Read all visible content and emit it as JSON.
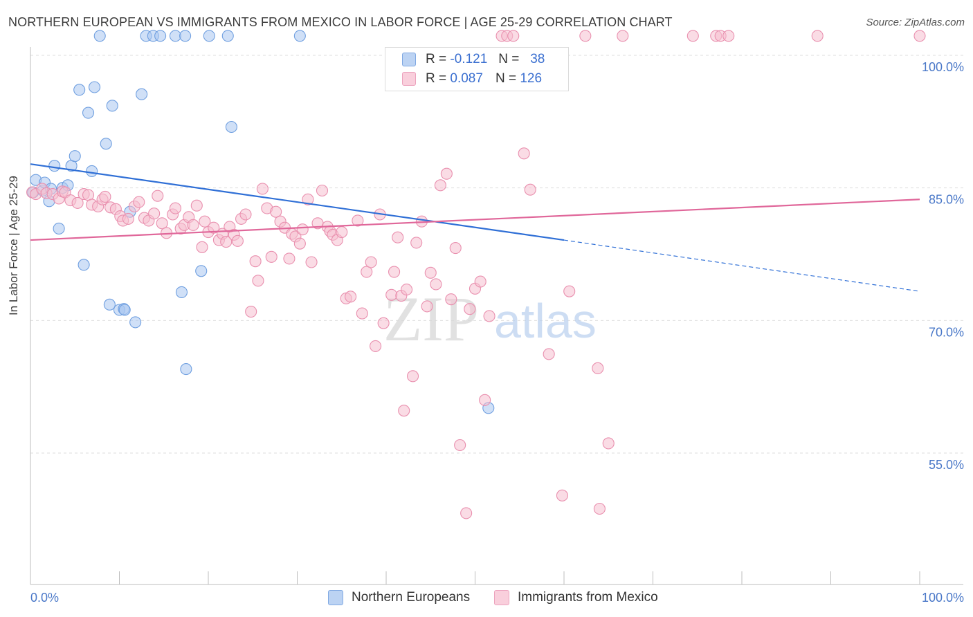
{
  "title": "NORTHERN EUROPEAN VS IMMIGRANTS FROM MEXICO IN LABOR FORCE | AGE 25-29 CORRELATION CHART",
  "source": "Source: ZipAtlas.com",
  "watermark": {
    "zip": "ZIP",
    "atlas": "atlas"
  },
  "legend": {
    "r_label": "R =",
    "n_label": "N =",
    "series1": {
      "r": "-0.121",
      "n": "38"
    },
    "series2": {
      "r": "0.087",
      "n": "126"
    }
  },
  "colors": {
    "blue_fill": "#a9c6f0",
    "blue_stroke": "#6f9fe0",
    "blue_line": "#2f6fd6",
    "pink_fill": "#f6bfd0",
    "pink_stroke": "#e98fae",
    "pink_line": "#e0679a",
    "tick_label": "#4a78c8"
  },
  "chart_data": {
    "type": "scatter",
    "xlabel": "",
    "ylabel": "In Labor Force | Age 25-29",
    "xlim": [
      0,
      100
    ],
    "ylim": [
      40,
      104
    ],
    "x_tick_labels": {
      "left": "0.0%",
      "right": "100.0%"
    },
    "y_ticks": [
      {
        "value": 100,
        "label": "100.0%"
      },
      {
        "value": 85,
        "label": "85.0%"
      },
      {
        "value": 70,
        "label": "70.0%"
      },
      {
        "value": 55,
        "label": "55.0%"
      }
    ],
    "grid": "horizontal dashed",
    "series": [
      {
        "name": "Northern Europeans",
        "trend": {
          "x": [
            0,
            60,
            100
          ],
          "y": [
            87.7,
            79.1,
            73.3
          ],
          "solid_until_x": 60
        },
        "points": [
          [
            0.3,
            84.5
          ],
          [
            0.6,
            85.9
          ],
          [
            1.4,
            84.7
          ],
          [
            1.6,
            85.6
          ],
          [
            2.1,
            83.5
          ],
          [
            2.3,
            84.9
          ],
          [
            2.7,
            87.5
          ],
          [
            3.2,
            80.4
          ],
          [
            3.6,
            85.0
          ],
          [
            4.2,
            85.3
          ],
          [
            4.6,
            87.5
          ],
          [
            5.0,
            88.6
          ],
          [
            5.5,
            96.1
          ],
          [
            6.0,
            76.3
          ],
          [
            6.5,
            93.5
          ],
          [
            6.9,
            86.9
          ],
          [
            7.2,
            96.4
          ],
          [
            7.8,
            102.2
          ],
          [
            8.5,
            90.0
          ],
          [
            8.9,
            71.8
          ],
          [
            9.2,
            94.3
          ],
          [
            10.0,
            71.2
          ],
          [
            10.5,
            71.3
          ],
          [
            10.6,
            71.2
          ],
          [
            11.2,
            82.3
          ],
          [
            11.8,
            69.8
          ],
          [
            12.5,
            95.6
          ],
          [
            13.0,
            102.2
          ],
          [
            13.8,
            102.2
          ],
          [
            14.6,
            102.2
          ],
          [
            16.3,
            102.2
          ],
          [
            17.0,
            73.2
          ],
          [
            17.4,
            102.2
          ],
          [
            17.5,
            64.5
          ],
          [
            19.2,
            75.6
          ],
          [
            20.1,
            102.2
          ],
          [
            22.2,
            102.2
          ],
          [
            22.6,
            91.9
          ],
          [
            30.3,
            102.2
          ],
          [
            51.5,
            60.1
          ]
        ]
      },
      {
        "name": "Immigrants from Mexico",
        "trend": {
          "x": [
            0,
            100
          ],
          "y": [
            79.1,
            83.7
          ]
        },
        "points": [
          [
            0.2,
            84.5
          ],
          [
            0.6,
            84.3
          ],
          [
            1.3,
            84.9
          ],
          [
            1.8,
            84.4
          ],
          [
            2.5,
            84.3
          ],
          [
            3.2,
            83.8
          ],
          [
            3.6,
            84.6
          ],
          [
            3.9,
            84.5
          ],
          [
            4.5,
            83.6
          ],
          [
            5.3,
            83.3
          ],
          [
            6.0,
            84.3
          ],
          [
            6.5,
            84.2
          ],
          [
            6.9,
            83.1
          ],
          [
            7.6,
            82.9
          ],
          [
            8.1,
            83.7
          ],
          [
            8.4,
            84.0
          ],
          [
            9.0,
            82.8
          ],
          [
            9.6,
            82.6
          ],
          [
            10.1,
            81.8
          ],
          [
            10.4,
            81.3
          ],
          [
            11.0,
            81.5
          ],
          [
            11.7,
            82.9
          ],
          [
            12.2,
            83.4
          ],
          [
            12.8,
            81.6
          ],
          [
            13.3,
            81.3
          ],
          [
            13.9,
            82.1
          ],
          [
            14.3,
            84.1
          ],
          [
            14.8,
            81.0
          ],
          [
            15.3,
            79.9
          ],
          [
            16.0,
            82.0
          ],
          [
            16.3,
            82.7
          ],
          [
            16.9,
            80.4
          ],
          [
            17.3,
            80.8
          ],
          [
            17.8,
            81.7
          ],
          [
            18.3,
            80.8
          ],
          [
            18.7,
            83.0
          ],
          [
            19.3,
            78.3
          ],
          [
            19.6,
            81.2
          ],
          [
            20.0,
            80.0
          ],
          [
            20.6,
            80.5
          ],
          [
            21.2,
            79.1
          ],
          [
            21.6,
            79.8
          ],
          [
            22.0,
            78.9
          ],
          [
            22.4,
            80.6
          ],
          [
            22.9,
            79.7
          ],
          [
            23.3,
            79.0
          ],
          [
            23.7,
            81.5
          ],
          [
            24.2,
            82.0
          ],
          [
            24.8,
            71.0
          ],
          [
            25.3,
            76.7
          ],
          [
            25.6,
            74.5
          ],
          [
            26.1,
            84.9
          ],
          [
            26.6,
            82.7
          ],
          [
            27.1,
            77.2
          ],
          [
            27.6,
            82.3
          ],
          [
            28.1,
            81.2
          ],
          [
            28.6,
            80.5
          ],
          [
            29.1,
            77.0
          ],
          [
            29.4,
            79.8
          ],
          [
            29.8,
            79.5
          ],
          [
            30.3,
            78.7
          ],
          [
            30.6,
            80.3
          ],
          [
            31.2,
            83.7
          ],
          [
            31.6,
            76.6
          ],
          [
            32.3,
            81.0
          ],
          [
            32.8,
            84.7
          ],
          [
            33.4,
            80.6
          ],
          [
            33.7,
            80.1
          ],
          [
            34.0,
            79.7
          ],
          [
            34.5,
            79.1
          ],
          [
            35.0,
            80.0
          ],
          [
            35.5,
            72.5
          ],
          [
            36.0,
            72.7
          ],
          [
            36.8,
            81.3
          ],
          [
            37.3,
            70.8
          ],
          [
            37.8,
            75.5
          ],
          [
            38.3,
            76.6
          ],
          [
            38.8,
            67.1
          ],
          [
            39.3,
            82.0
          ],
          [
            39.7,
            69.7
          ],
          [
            40.6,
            72.9
          ],
          [
            40.9,
            75.5
          ],
          [
            41.3,
            79.4
          ],
          [
            41.7,
            72.8
          ],
          [
            42.0,
            59.8
          ],
          [
            42.3,
            73.5
          ],
          [
            43.0,
            63.7
          ],
          [
            43.4,
            78.8
          ],
          [
            44.0,
            81.2
          ],
          [
            44.6,
            71.6
          ],
          [
            45.0,
            75.4
          ],
          [
            45.6,
            74.1
          ],
          [
            46.1,
            85.3
          ],
          [
            46.8,
            86.6
          ],
          [
            47.3,
            72.4
          ],
          [
            47.8,
            78.2
          ],
          [
            48.3,
            55.9
          ],
          [
            49.0,
            48.2
          ],
          [
            49.4,
            71.3
          ],
          [
            50.0,
            73.6
          ],
          [
            50.6,
            74.4
          ],
          [
            51.1,
            61.0
          ],
          [
            51.6,
            70.5
          ],
          [
            53.0,
            102.2
          ],
          [
            53.6,
            102.2
          ],
          [
            54.3,
            102.2
          ],
          [
            55.5,
            88.9
          ],
          [
            56.2,
            84.8
          ],
          [
            58.3,
            66.2
          ],
          [
            59.8,
            50.2
          ],
          [
            60.6,
            73.3
          ],
          [
            62.4,
            102.2
          ],
          [
            63.8,
            64.6
          ],
          [
            64.0,
            48.7
          ],
          [
            65.0,
            56.1
          ],
          [
            66.6,
            102.2
          ],
          [
            74.5,
            102.2
          ],
          [
            77.1,
            102.2
          ],
          [
            77.6,
            102.2
          ],
          [
            78.5,
            102.2
          ],
          [
            88.5,
            102.2
          ],
          [
            100.0,
            102.2
          ]
        ]
      }
    ]
  },
  "bottom_legend": {
    "series1_label": "Northern Europeans",
    "series2_label": "Immigrants from Mexico"
  }
}
